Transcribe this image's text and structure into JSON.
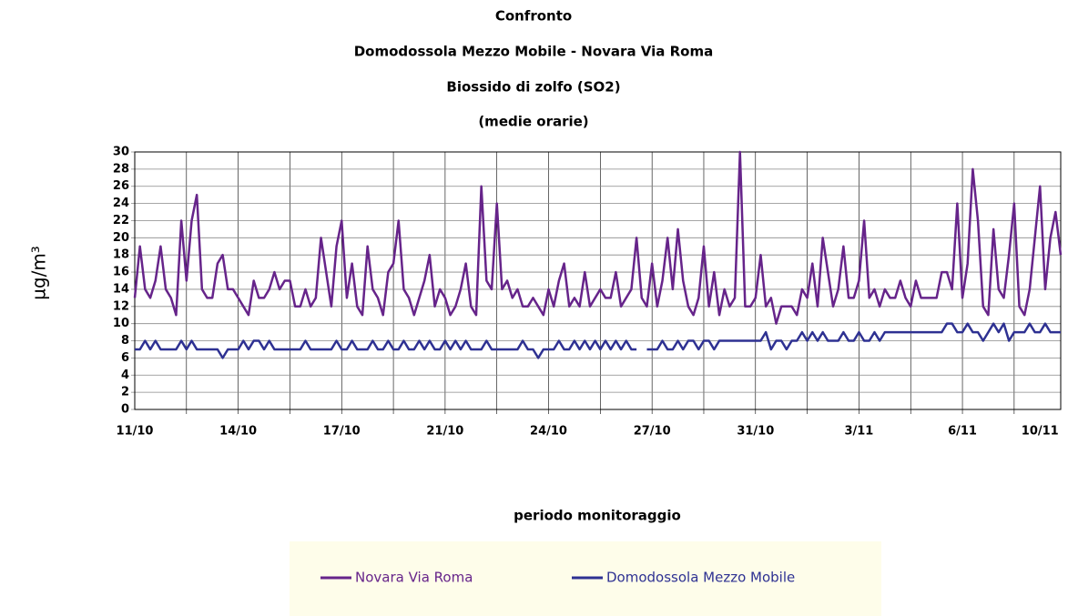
{
  "chart_data": {
    "type": "line",
    "title": "Confronto",
    "subtitle": [
      "Domodossola Mezzo Mobile - Novara Via Roma",
      "Biossido di zolfo (SO2)",
      "(medie orarie)"
    ],
    "y_label": "µg/m³",
    "x_label": "periodo monitoraggio",
    "ylim": [
      0,
      30
    ],
    "yticks": [
      0,
      2,
      4,
      6,
      8,
      10,
      12,
      14,
      16,
      18,
      20,
      22,
      24,
      26,
      28,
      30
    ],
    "grid": true,
    "legend": "bottom",
    "categories": [
      "11/10",
      null,
      null,
      null,
      null,
      null,
      null,
      null,
      null,
      null,
      null,
      null,
      null,
      null,
      null,
      null,
      null,
      null,
      null,
      null,
      "14/10",
      null,
      null,
      null,
      null,
      null,
      null,
      null,
      null,
      null,
      null,
      null,
      null,
      null,
      null,
      null,
      null,
      null,
      null,
      null,
      "17/10",
      null,
      null,
      null,
      null,
      null,
      null,
      null,
      null,
      null,
      null,
      null,
      null,
      null,
      null,
      null,
      null,
      null,
      null,
      null,
      "21/10",
      null,
      null,
      null,
      null,
      null,
      null,
      null,
      null,
      null,
      null,
      null,
      null,
      null,
      null,
      null,
      null,
      null,
      null,
      null,
      "24/10",
      null,
      null,
      null,
      null,
      null,
      null,
      null,
      null,
      null,
      null,
      null,
      null,
      null,
      null,
      null,
      null,
      null,
      null,
      null,
      "27/10",
      null,
      null,
      null,
      null,
      null,
      null,
      null,
      null,
      null,
      null,
      null,
      null,
      null,
      null,
      null,
      null,
      null,
      null,
      null,
      "31/10",
      null,
      null,
      null,
      null,
      null,
      null,
      null,
      null,
      null,
      null,
      null,
      null,
      null,
      null,
      null,
      null,
      null,
      null,
      null,
      "3/11",
      null,
      null,
      null,
      null,
      null,
      null,
      null,
      null,
      null,
      null,
      null,
      null,
      null,
      null,
      null,
      null,
      null,
      null,
      null,
      "6/11",
      null,
      null,
      null,
      null,
      null,
      null,
      null,
      null,
      null,
      null,
      null,
      null,
      null,
      null,
      "10/11",
      null,
      null,
      null,
      null
    ],
    "series": [
      {
        "name": "Novara Via Roma",
        "color": "#66248a",
        "values": [
          13,
          19,
          14,
          13,
          15,
          19,
          14,
          13,
          11,
          22,
          15,
          22,
          25,
          14,
          13,
          13,
          17,
          18,
          14,
          14,
          13,
          12,
          11,
          15,
          13,
          13,
          14,
          16,
          14,
          15,
          15,
          12,
          12,
          14,
          12,
          13,
          20,
          16,
          12,
          19,
          22,
          13,
          17,
          12,
          11,
          19,
          14,
          13,
          11,
          16,
          17,
          22,
          14,
          13,
          11,
          13,
          15,
          18,
          12,
          14,
          13,
          11,
          12,
          14,
          17,
          12,
          11,
          26,
          15,
          14,
          24,
          14,
          15,
          13,
          14,
          12,
          12,
          13,
          12,
          11,
          14,
          12,
          15,
          17,
          12,
          13,
          12,
          16,
          12,
          13,
          14,
          13,
          13,
          16,
          12,
          13,
          14,
          20,
          13,
          12,
          17,
          12,
          15,
          20,
          14,
          21,
          15,
          12,
          11,
          13,
          19,
          12,
          16,
          11,
          14,
          12,
          13,
          30,
          12,
          12,
          13,
          18,
          12,
          13,
          10,
          12,
          12,
          12,
          11,
          14,
          13,
          17,
          12,
          20,
          16,
          12,
          14,
          19,
          13,
          13,
          15,
          22,
          13,
          14,
          12,
          14,
          13,
          13,
          15,
          13,
          12,
          15,
          13,
          13,
          13,
          13,
          16,
          16,
          14,
          24,
          13,
          17,
          28,
          22,
          12,
          11,
          21,
          14,
          13,
          18,
          24,
          12,
          11,
          14,
          20,
          26,
          14,
          20,
          23,
          18
        ]
      },
      {
        "name": "Domodossola Mezzo Mobile",
        "color": "#2e3192",
        "values": [
          7,
          7,
          8,
          7,
          8,
          7,
          7,
          7,
          7,
          8,
          7,
          8,
          7,
          7,
          7,
          7,
          7,
          6,
          7,
          7,
          7,
          8,
          7,
          8,
          8,
          7,
          8,
          7,
          7,
          7,
          7,
          7,
          7,
          8,
          7,
          7,
          7,
          7,
          7,
          8,
          7,
          7,
          8,
          7,
          7,
          7,
          8,
          7,
          7,
          8,
          7,
          7,
          8,
          7,
          7,
          8,
          7,
          8,
          7,
          7,
          8,
          7,
          8,
          7,
          8,
          7,
          7,
          7,
          8,
          7,
          7,
          7,
          7,
          7,
          7,
          8,
          7,
          7,
          6,
          7,
          7,
          7,
          8,
          7,
          7,
          8,
          7,
          8,
          7,
          8,
          7,
          8,
          7,
          8,
          7,
          8,
          7,
          7,
          null,
          7,
          7,
          7,
          8,
          7,
          7,
          8,
          7,
          8,
          8,
          7,
          8,
          8,
          7,
          8,
          8,
          8,
          8,
          8,
          8,
          8,
          8,
          8,
          9,
          7,
          8,
          8,
          7,
          8,
          8,
          9,
          8,
          9,
          8,
          9,
          8,
          8,
          8,
          9,
          8,
          8,
          9,
          8,
          8,
          9,
          8,
          9,
          9,
          9,
          9,
          9,
          9,
          9,
          9,
          9,
          9,
          9,
          9,
          10,
          10,
          9,
          9,
          10,
          9,
          9,
          8,
          9,
          10,
          9,
          10,
          8,
          9,
          9,
          9,
          10,
          9,
          9,
          10,
          9,
          9,
          9
        ]
      }
    ]
  }
}
